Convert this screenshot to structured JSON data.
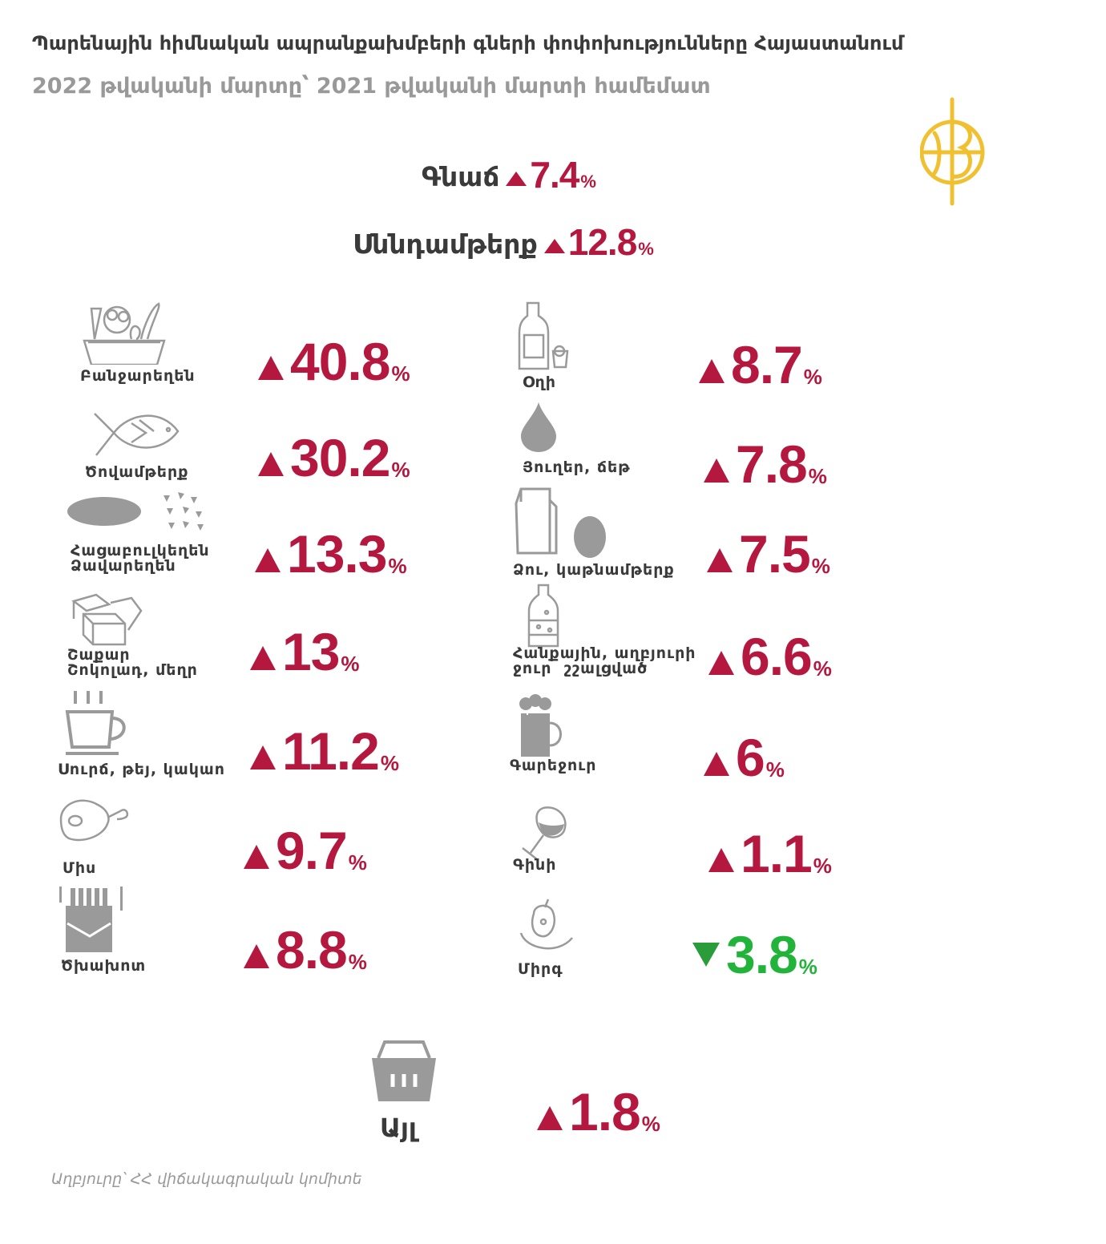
{
  "title": "Պարենային հիմնական ապրանքախմբերի գների փոփոխությունները  Հայաստանում",
  "subtitle": "2022 թվականի մարտը՝ 2021 թվականի մարտի համեմատ",
  "logo": {
    "icon": "logo-emblem",
    "color": "#f0c030"
  },
  "summary": [
    {
      "label": "Գնաճ",
      "value": "7.4",
      "unit": "%",
      "direction": "up"
    },
    {
      "label": "Սննդամթերք",
      "value": "12.8",
      "unit": "%",
      "direction": "up"
    }
  ],
  "left_items": [
    {
      "label": "Բանջարեղեն",
      "value": "40.8",
      "unit": "%",
      "direction": "up",
      "icon": "vegetable-basket-icon"
    },
    {
      "label": "Ծովամթերք",
      "value": "30.2",
      "unit": "%",
      "direction": "up",
      "icon": "fish-icon"
    },
    {
      "label": "Հացաբուլկեղեն\nՁավարեղեն",
      "value": "13.3",
      "unit": "%",
      "direction": "up",
      "icon": "bread-grain-icon"
    },
    {
      "label": "Շաքար\nՇոկոլադ, մեղր",
      "value": "13",
      "unit": "%",
      "direction": "up",
      "icon": "sugar-cubes-icon"
    },
    {
      "label": "Սուրճ, թեյ, կակաո",
      "value": "11.2",
      "unit": "%",
      "direction": "up",
      "icon": "coffee-cup-icon"
    },
    {
      "label": "Միս",
      "value": "9.7",
      "unit": "%",
      "direction": "up",
      "icon": "meat-icon"
    },
    {
      "label": "Ծխախոտ",
      "value": "8.8",
      "unit": "%",
      "direction": "up",
      "icon": "cigarettes-icon"
    }
  ],
  "right_items": [
    {
      "label": "Օղի",
      "value": "8.7",
      "unit": "%",
      "direction": "up",
      "icon": "vodka-bottle-icon"
    },
    {
      "label": "Յուղեր, ճեթ",
      "value": "7.8",
      "unit": "%",
      "direction": "up",
      "icon": "oil-drop-icon"
    },
    {
      "label": "Ձու, կաթնամթերք",
      "value": "7.5",
      "unit": "%",
      "direction": "up",
      "icon": "milk-egg-icon"
    },
    {
      "label": "Հանքային, աղբյուրի\nջուր  շշալցված",
      "value": "6.6",
      "unit": "%",
      "direction": "up",
      "icon": "water-bottle-icon"
    },
    {
      "label": "Գարեջուր",
      "value": "6",
      "unit": "%",
      "direction": "up",
      "icon": "beer-mug-icon"
    },
    {
      "label": "Գինի",
      "value": "1.1",
      "unit": "%",
      "direction": "up",
      "icon": "wine-glass-icon"
    },
    {
      "label": "Միրգ",
      "value": "3.8",
      "unit": "%",
      "direction": "down",
      "icon": "fruit-icon"
    }
  ],
  "other": {
    "label": "Այլ",
    "value": "1.8",
    "unit": "%",
    "direction": "up",
    "icon": "basket-icon"
  },
  "source": "Աղբյուրը՝ ՀՀ վիճակագրական կոմիտե",
  "colors": {
    "up": "#b5183e",
    "down": "#22b43a",
    "icon": "#9a9a9a"
  }
}
